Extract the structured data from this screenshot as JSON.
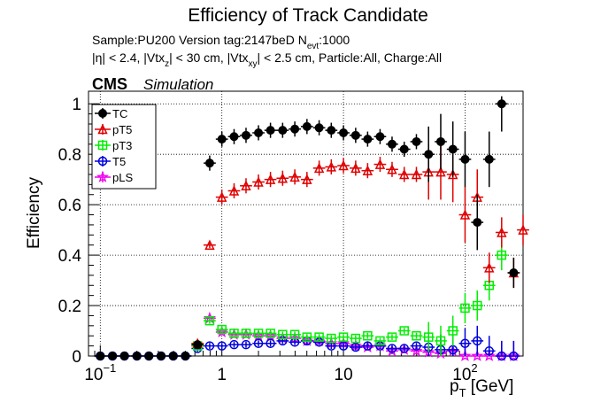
{
  "header": {
    "title": "Efficiency of Track Candidate",
    "sample_line": "Sample:PU200   Version tag:2147beD  N",
    "sample_sub": "evt",
    "sample_tail": ":1000",
    "cuts_p1": "|η| < 2.4, |Vtx",
    "cuts_sub1": "z",
    "cuts_p2": "| < 30 cm, |Vtx",
    "cuts_sub2": "xy",
    "cuts_p3": "| < 2.5 cm, Particle:All, Charge:All"
  },
  "cms_label": "CMS",
  "simulation_label": "Simulation",
  "colors": {
    "TC": "#000000",
    "pT5": "#e00000",
    "pT3": "#00ee00",
    "T5": "#0000dd",
    "pLS": "#ee00ee"
  },
  "chart_data": {
    "type": "scatter",
    "title": "Efficiency of Track Candidate",
    "xlabel": "p",
    "xlabel_sub": "T",
    "xlabel_tail": " [GeV]",
    "ylabel": "Efficiency",
    "xscale": "log",
    "xlim": [
      0.08,
      300
    ],
    "ylim": [
      0,
      1.05
    ],
    "x_ticks": [
      {
        "value": 0.1,
        "base": "10",
        "exp": "−1"
      },
      {
        "value": 1,
        "base": "1",
        "exp": ""
      },
      {
        "value": 10,
        "base": "10",
        "exp": ""
      },
      {
        "value": 100,
        "base": "10",
        "exp": "2"
      }
    ],
    "y_ticks": [
      "0",
      "0.2",
      "0.4",
      "0.6",
      "0.8",
      "1"
    ],
    "grid": true,
    "legend_position": "top-left",
    "series": [
      {
        "name": "TC",
        "marker": "filled-circle",
        "x": [
          0.1,
          0.126,
          0.158,
          0.2,
          0.251,
          0.316,
          0.398,
          0.501,
          0.631,
          0.794,
          1.0,
          1.26,
          1.58,
          2.0,
          2.51,
          3.16,
          3.98,
          5.01,
          6.31,
          7.94,
          10.0,
          12.6,
          15.8,
          20.0,
          25.1,
          31.6,
          39.8,
          50.1,
          63.1,
          79.4,
          100,
          126,
          158,
          200,
          251
        ],
        "y": [
          0,
          0,
          0,
          0,
          0,
          0,
          0,
          0,
          0.045,
          0.765,
          0.86,
          0.87,
          0.875,
          0.885,
          0.895,
          0.895,
          0.9,
          0.91,
          0.905,
          0.895,
          0.885,
          0.875,
          0.86,
          0.87,
          0.84,
          0.82,
          0.85,
          0.8,
          0.85,
          0.82,
          0.78,
          0.53,
          0.78,
          1.0,
          0.33
        ]
      },
      {
        "name": "pT5",
        "marker": "open-triangle",
        "x": [
          0.631,
          0.794,
          1.0,
          1.26,
          1.58,
          2.0,
          2.51,
          3.16,
          3.98,
          5.01,
          6.31,
          7.94,
          10.0,
          12.6,
          15.8,
          20.0,
          25.1,
          31.6,
          39.8,
          50.1,
          63.1,
          79.4,
          100,
          126,
          158,
          200,
          251,
          300
        ],
        "y": [
          0.05,
          0.44,
          0.63,
          0.655,
          0.675,
          0.69,
          0.7,
          0.705,
          0.71,
          0.7,
          0.745,
          0.75,
          0.755,
          0.745,
          0.735,
          0.76,
          0.74,
          0.72,
          0.72,
          0.73,
          0.73,
          0.72,
          0.56,
          0.63,
          0.35,
          0.49,
          0.33,
          0.5
        ]
      },
      {
        "name": "pT3",
        "marker": "open-square",
        "x": [
          0.631,
          0.794,
          1.0,
          1.26,
          1.58,
          2.0,
          2.51,
          3.16,
          3.98,
          5.01,
          6.31,
          7.94,
          10.0,
          12.6,
          15.8,
          20.0,
          25.1,
          31.6,
          39.8,
          50.1,
          63.1,
          79.4,
          100,
          126,
          158,
          200
        ],
        "y": [
          0.04,
          0.14,
          0.105,
          0.09,
          0.09,
          0.09,
          0.09,
          0.085,
          0.085,
          0.075,
          0.075,
          0.07,
          0.075,
          0.07,
          0.08,
          0.06,
          0.075,
          0.1,
          0.08,
          0.075,
          0.06,
          0.1,
          0.19,
          0.2,
          0.28,
          0.4
        ]
      },
      {
        "name": "T5",
        "marker": "open-circle",
        "x": [
          0.1,
          0.126,
          0.158,
          0.2,
          0.251,
          0.316,
          0.398,
          0.501,
          0.631,
          0.794,
          1.0,
          1.26,
          1.58,
          2.0,
          2.51,
          3.16,
          3.98,
          5.01,
          6.31,
          7.94,
          10.0,
          12.6,
          15.8,
          20.0,
          25.1,
          31.6,
          39.8,
          50.1,
          63.1,
          79.4,
          100,
          126,
          158,
          200,
          251
        ],
        "y": [
          0,
          0,
          0,
          0,
          0,
          0,
          0,
          0,
          0.03,
          0.04,
          0.04,
          0.045,
          0.045,
          0.05,
          0.05,
          0.06,
          0.055,
          0.06,
          0.055,
          0.04,
          0.04,
          0.035,
          0.04,
          0.04,
          0.03,
          0.03,
          0.04,
          0.035,
          0.025,
          0.025,
          0.05,
          0.06,
          0.02,
          0,
          0
        ]
      },
      {
        "name": "pLS",
        "marker": "open-star",
        "x": [
          0.631,
          0.794,
          1.0,
          1.26,
          1.58,
          2.0,
          2.51,
          3.16,
          3.98,
          5.01,
          6.31,
          7.94,
          10.0,
          12.6,
          15.8,
          20.0,
          25.1,
          31.6,
          39.8,
          50.1,
          63.1,
          79.4,
          100,
          126,
          158,
          200,
          251
        ],
        "y": [
          0.04,
          0.15,
          0.095,
          0.085,
          0.085,
          0.08,
          0.08,
          0.07,
          0.07,
          0.06,
          0.06,
          0.05,
          0.05,
          0.04,
          0.035,
          0.04,
          0.02,
          0.025,
          0.02,
          0.015,
          0.01,
          0.02,
          0.0,
          0.0,
          0.0,
          0.0,
          0.0
        ]
      }
    ]
  }
}
